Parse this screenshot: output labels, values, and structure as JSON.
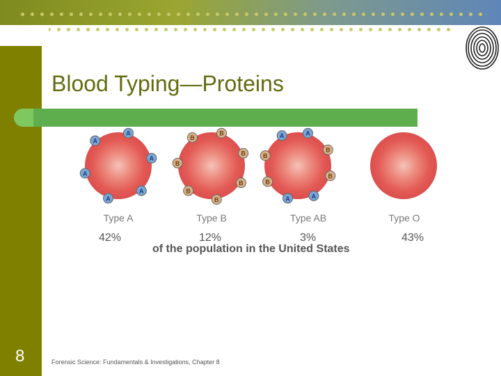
{
  "slide": {
    "title": "Blood Typing—Proteins",
    "number": "8",
    "footer": "Forensic Science: Fundamentals & Investigations, Chapter 8",
    "caption": "of the population in the United States"
  },
  "cells": [
    {
      "label": "Type A",
      "percent": "42%",
      "antigens": [
        "A",
        "A",
        "A",
        "A",
        "A",
        "A"
      ]
    },
    {
      "label": "Type B",
      "percent": "12%",
      "antigens": [
        "B",
        "B",
        "B",
        "B",
        "B",
        "B",
        "B"
      ]
    },
    {
      "label": "Type AB",
      "percent": "3%",
      "antigens": [
        "A",
        "B",
        "B",
        "A",
        "A",
        "B",
        "B",
        "A"
      ]
    },
    {
      "label": "Type O",
      "percent": "43%",
      "antigens": []
    }
  ],
  "colors": {
    "olive": "#808000",
    "title": "#636b0f",
    "green_bar": "#5fae4e",
    "cell_center": "#e8736a",
    "cell_edge": "#d94d4d",
    "antigen_a_fill": "#7aa6d6",
    "antigen_b_fill": "#d9b38a"
  }
}
